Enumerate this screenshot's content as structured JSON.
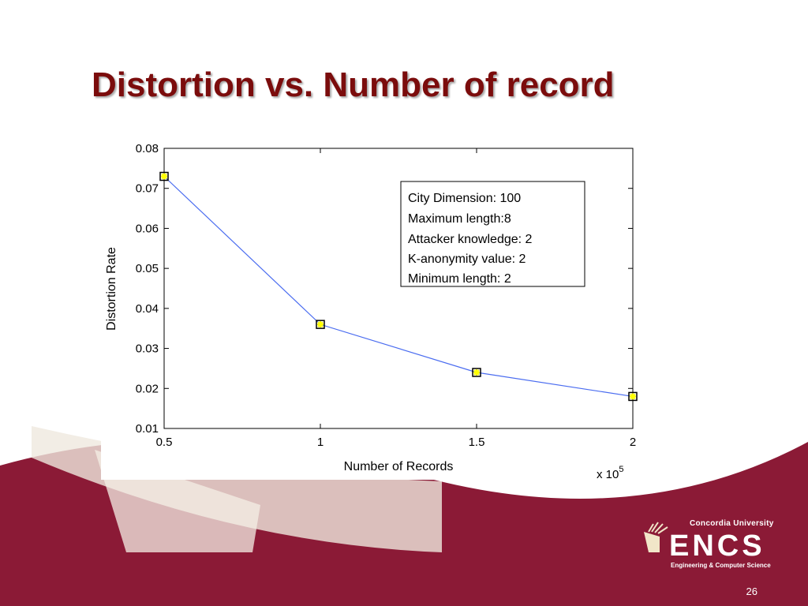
{
  "slide": {
    "title": "Distortion vs. Number of record",
    "page_number": "26"
  },
  "logo": {
    "university": "Concordia University",
    "name": "ENCS",
    "subtitle": "Engineering & Computer Science"
  },
  "colors": {
    "title": "#7b0c0c",
    "banner": "#8b1a36",
    "line": "#4a6cf0",
    "marker_fill": "#ffff00",
    "marker_edge": "#000000"
  },
  "chart_data": {
    "type": "line",
    "xlabel": "Number of Records",
    "ylabel": "Distortion Rate",
    "x_multiplier_label": "x 10",
    "x_multiplier_exponent": "5",
    "xlim": [
      0.5,
      2
    ],
    "ylim": [
      0.01,
      0.08
    ],
    "x_ticks": [
      "0.5",
      "1",
      "1.5",
      "2"
    ],
    "y_ticks": [
      "0.01",
      "0.02",
      "0.03",
      "0.04",
      "0.05",
      "0.06",
      "0.07",
      "0.08"
    ],
    "grid": false,
    "series": [
      {
        "x": [
          0.5,
          1,
          1.5,
          2
        ],
        "values": [
          0.073,
          0.036,
          0.024,
          0.018
        ]
      }
    ],
    "annotation_lines": [
      "City Dimension: 100",
      "Maximum length:8",
      "Attacker knowledge: 2",
      "K-anonymity value: 2",
      "Minimum length: 2"
    ]
  }
}
